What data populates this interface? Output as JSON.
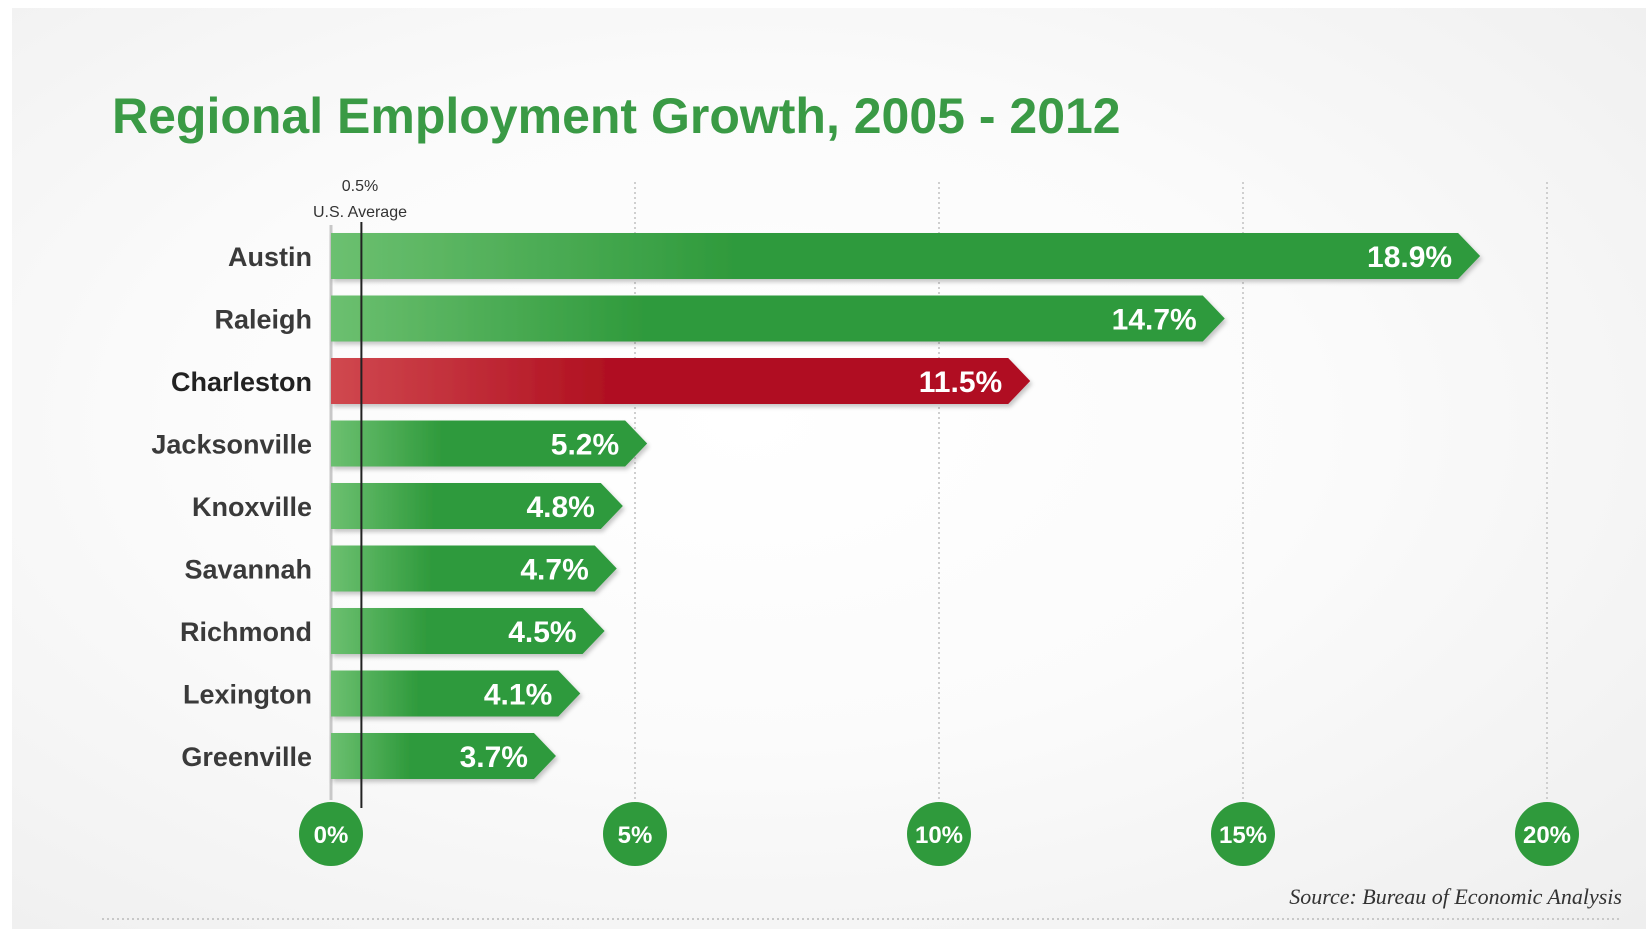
{
  "chart_data": {
    "type": "bar",
    "orientation": "horizontal",
    "title": "Regional Employment Growth, 2005 - 2012",
    "categories": [
      "Austin",
      "Raleigh",
      "Charleston",
      "Jacksonville",
      "Knoxville",
      "Savannah",
      "Richmond",
      "Lexington",
      "Greenville"
    ],
    "values": [
      18.9,
      14.7,
      11.5,
      5.2,
      4.8,
      4.7,
      4.5,
      4.1,
      3.7
    ],
    "value_labels": [
      "18.9%",
      "14.7%",
      "11.5%",
      "5.2%",
      "4.8%",
      "4.7%",
      "4.5%",
      "4.1%",
      "3.7%"
    ],
    "highlight_category": "Charleston",
    "xlim": [
      0,
      20
    ],
    "x_ticks": [
      0,
      5,
      10,
      15,
      20
    ],
    "x_tick_labels": [
      "0%",
      "5%",
      "10%",
      "15%",
      "20%"
    ],
    "grid": true,
    "reference_line": {
      "value": 0.5,
      "label_value": "0.5%",
      "label": "U.S. Average"
    },
    "source": "Source: Bureau of Economic Analysis",
    "colors": {
      "bar": "#2f9a3c",
      "bar_light": "#6cc070",
      "highlight": "#b01020",
      "highlight_light": "#d0484f",
      "title": "#3a9a45",
      "tick_circle": "#2f9a3c"
    }
  }
}
